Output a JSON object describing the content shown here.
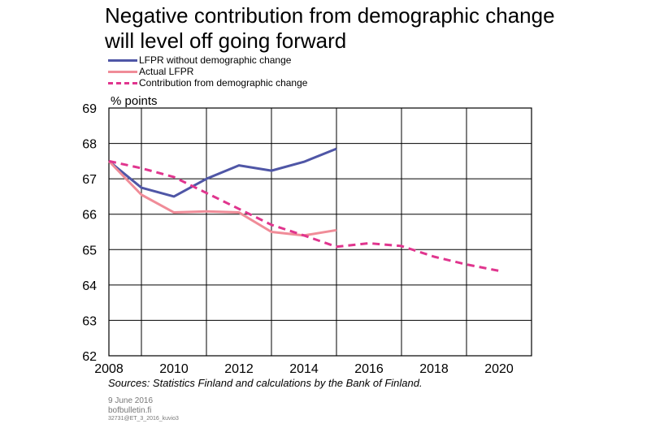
{
  "title_line1": "Negative contribution from demographic change",
  "title_line2": "will level off going forward",
  "unit_label": "% points",
  "source": "Sources: Statistics Finland and calculations by the Bank of Finland.",
  "footer": {
    "date": "9 June 2016",
    "site": "bofbulletin.fi",
    "code": "32731@ET_3_2016_kuvio3"
  },
  "chart_data": {
    "type": "line",
    "title": "Negative contribution from demographic change will level off going forward",
    "ylabel": "% points",
    "xlim": [
      2008,
      2021
    ],
    "ylim": [
      62,
      69
    ],
    "x_ticks": [
      2008,
      2010,
      2012,
      2014,
      2016,
      2018,
      2020
    ],
    "y_ticks": [
      62,
      63,
      64,
      65,
      66,
      67,
      68,
      69
    ],
    "grid": true,
    "legend_position": "top-left",
    "series": [
      {
        "name": "LFPR without demographic change",
        "color": "#4f56a6",
        "style": "solid",
        "x": [
          2008,
          2009,
          2010,
          2011,
          2012,
          2013,
          2014,
          2015
        ],
        "y": [
          67.5,
          66.75,
          66.5,
          67.0,
          67.38,
          67.23,
          67.48,
          67.85
        ]
      },
      {
        "name": "Actual LFPR",
        "color": "#f08c98",
        "style": "solid",
        "x": [
          2008,
          2009,
          2010,
          2011,
          2012,
          2013,
          2014,
          2015
        ],
        "y": [
          67.5,
          66.55,
          66.05,
          66.08,
          66.05,
          65.5,
          65.4,
          65.55
        ]
      },
      {
        "name": "Contribution from demographic change",
        "color": "#e0358e",
        "style": "dashed",
        "x": [
          2008,
          2009,
          2010,
          2011,
          2012,
          2013,
          2014,
          2015,
          2016,
          2017,
          2018,
          2019,
          2020
        ],
        "y": [
          67.5,
          67.3,
          67.05,
          66.6,
          66.15,
          65.7,
          65.4,
          65.08,
          65.18,
          65.1,
          64.8,
          64.58,
          64.4
        ]
      }
    ]
  }
}
